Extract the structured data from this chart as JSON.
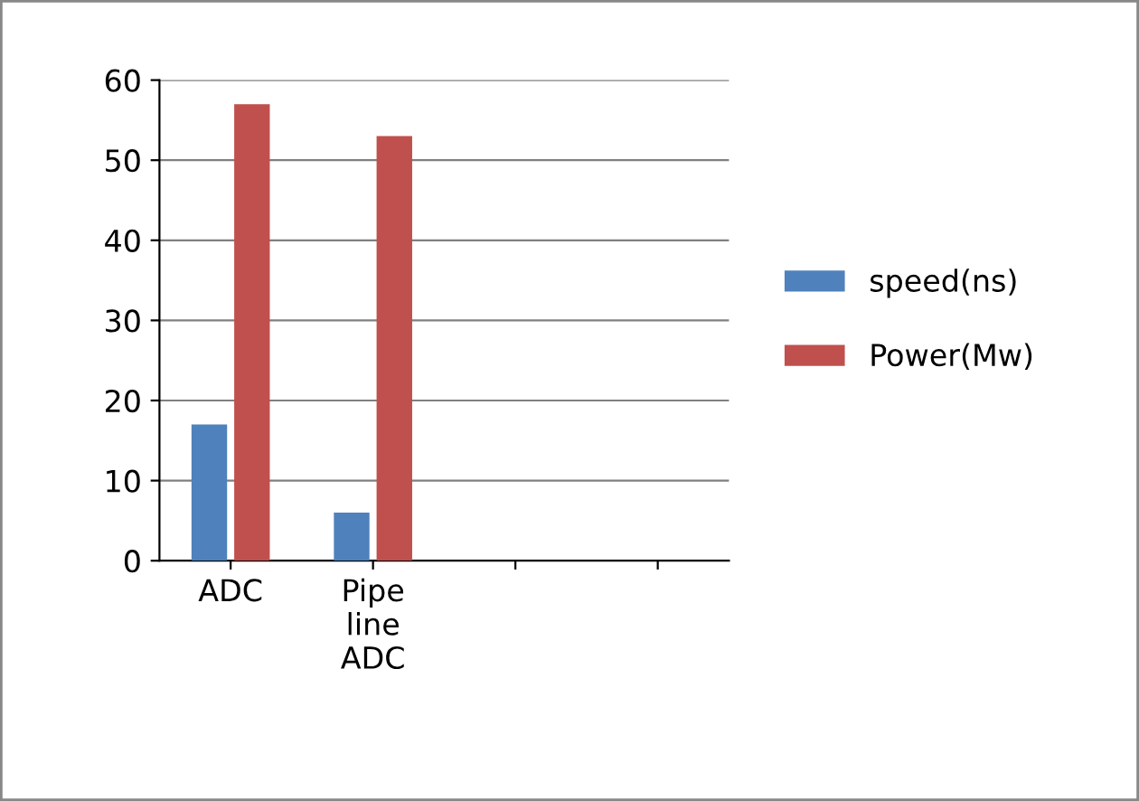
{
  "chart_data": {
    "type": "bar",
    "categories": [
      "ADC",
      "Pipe\nline\nADC",
      null,
      null
    ],
    "series": [
      {
        "name": "speed(ns)",
        "color": "#4f81bd",
        "values": [
          17,
          6,
          null,
          null
        ]
      },
      {
        "name": "Power(Mw)",
        "color": "#c0504d",
        "values": [
          57,
          53,
          null,
          null
        ]
      }
    ],
    "ylim": [
      0,
      60
    ],
    "yticks": [
      0,
      10,
      20,
      30,
      40,
      50,
      60
    ],
    "grid": "y",
    "legend": "right"
  }
}
